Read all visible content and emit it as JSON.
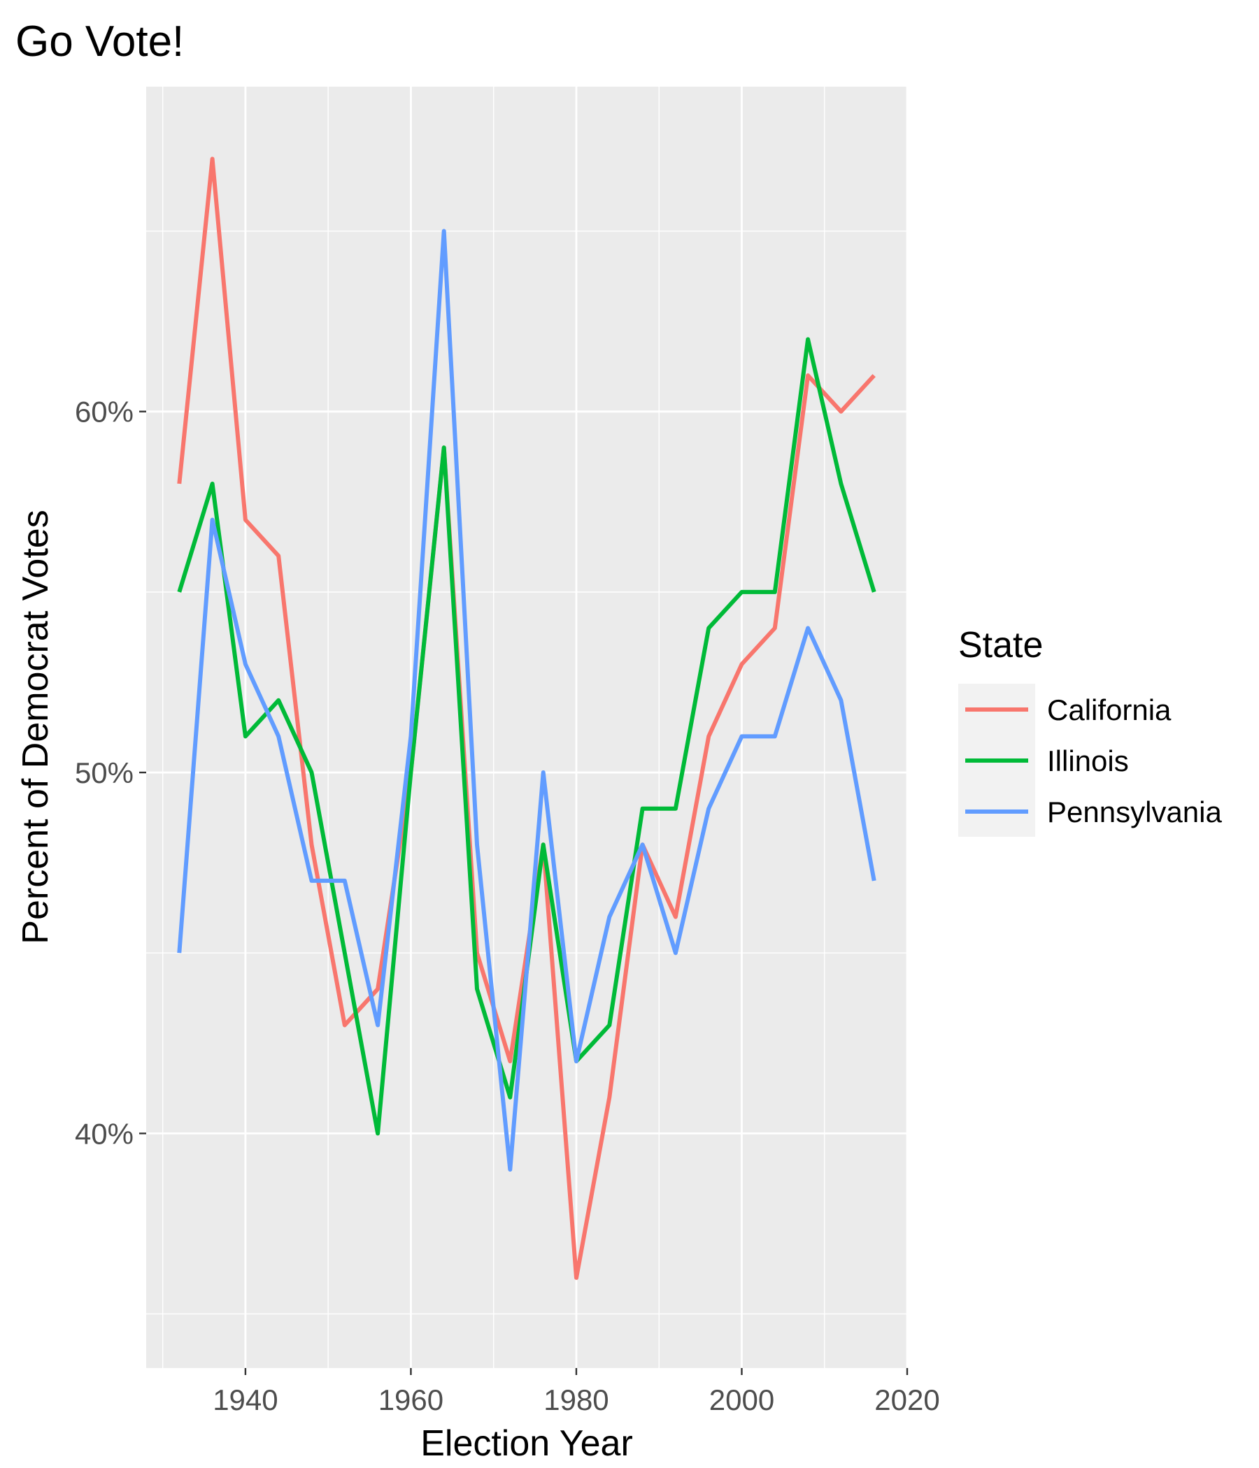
{
  "chart_data": {
    "type": "line",
    "title": "Go Vote!",
    "xlabel": "Election Year",
    "ylabel": "Percent of Democrat Votes",
    "xlim": [
      1928,
      2020
    ],
    "ylim": [
      0.335,
      0.69
    ],
    "xticks": [
      1940,
      1960,
      1980,
      2000,
      2020
    ],
    "yticks": [
      0.4,
      0.5,
      0.6
    ],
    "ytick_labels": [
      "40%",
      "50%",
      "60%"
    ],
    "x": [
      1932,
      1936,
      1940,
      1944,
      1948,
      1952,
      1956,
      1960,
      1964,
      1968,
      1972,
      1976,
      1980,
      1984,
      1988,
      1992,
      1996,
      2000,
      2004,
      2008,
      2012,
      2016
    ],
    "grid": true,
    "legend_title": "State",
    "legend_position": "right",
    "series": [
      {
        "name": "California",
        "color": "#F8766D",
        "values": [
          0.58,
          0.67,
          0.57,
          0.56,
          0.48,
          0.43,
          0.44,
          0.5,
          0.59,
          0.45,
          0.42,
          0.48,
          0.36,
          0.41,
          0.48,
          0.46,
          0.51,
          0.53,
          0.54,
          0.61,
          0.6,
          0.61
        ]
      },
      {
        "name": "Illinois",
        "color": "#00BA38",
        "values": [
          0.55,
          0.58,
          0.51,
          0.52,
          0.5,
          0.45,
          0.4,
          0.5,
          0.59,
          0.44,
          0.41,
          0.48,
          0.42,
          0.43,
          0.49,
          0.49,
          0.54,
          0.55,
          0.55,
          0.62,
          0.58,
          0.55
        ]
      },
      {
        "name": "Pennsylvania",
        "color": "#619CFF",
        "values": [
          0.45,
          0.57,
          0.53,
          0.51,
          0.47,
          0.47,
          0.43,
          0.51,
          0.65,
          0.48,
          0.39,
          0.5,
          0.42,
          0.46,
          0.48,
          0.45,
          0.49,
          0.51,
          0.51,
          0.54,
          0.52,
          0.47
        ]
      }
    ]
  }
}
